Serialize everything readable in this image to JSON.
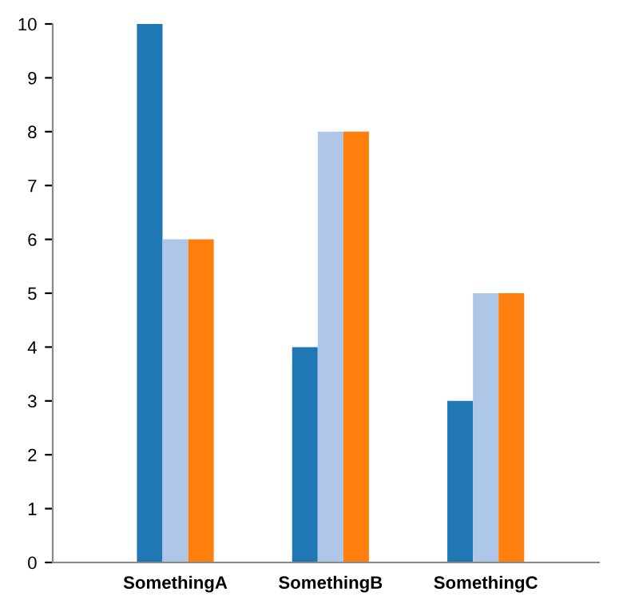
{
  "chart_data": {
    "type": "bar",
    "categories": [
      "SomethingA",
      "SomethingB",
      "SomethingC"
    ],
    "series": [
      {
        "color": "#1f77b4",
        "values": [
          10,
          4,
          3
        ]
      },
      {
        "color": "#aec7e8",
        "values": [
          6,
          8,
          5
        ]
      },
      {
        "color": "#ff7f0e",
        "values": [
          6,
          8,
          5
        ]
      }
    ],
    "ylim": [
      0,
      10
    ],
    "yticks": [
      0,
      1,
      2,
      3,
      4,
      5,
      6,
      7,
      8,
      9,
      10
    ],
    "grid": false,
    "legend": false
  }
}
